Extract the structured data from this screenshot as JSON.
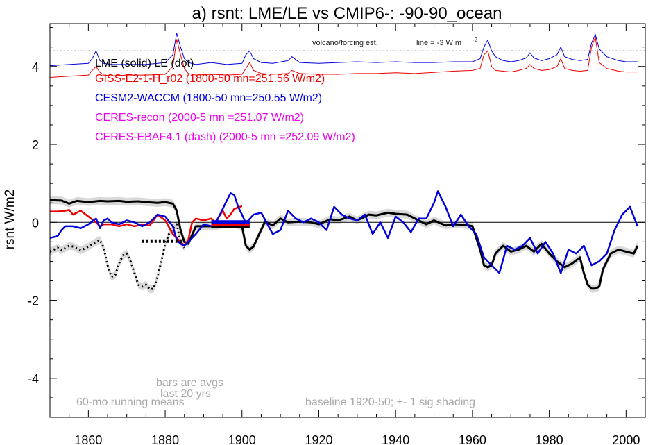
{
  "chart_data": {
    "type": "line",
    "title": "a) rsnt: LME/LE vs CMIP6-: -90-90_ocean",
    "ylabel": "rsnt W/m2",
    "xlabel": "",
    "xlim": [
      1850,
      2005
    ],
    "ylim": [
      -5,
      5.1
    ],
    "x_ticks": [
      "1860",
      "1880",
      "1900",
      "1920",
      "1940",
      "1960",
      "1980",
      "2000"
    ],
    "y_ticks": [
      "4",
      "2",
      "0",
      "-2",
      "-4"
    ],
    "grid": false,
    "zero_line": 0,
    "legend_placement": "top-left",
    "legend": [
      {
        "text": "LME (solid)   LE (dot)",
        "color": "#000000"
      },
      {
        "text": "GISS-E2-1-H_r02 (1800-50 mn=251.56 W/m2)",
        "color": "#ee0000"
      },
      {
        "text": "CESM2-WACCM (1800-50 mn=250.55 W/m2)",
        "color": "#0000dd"
      },
      {
        "text": "CERES-recon (2000-5 mn =251.07 W/m2)",
        "color": "#ee00ee"
      },
      {
        "text": "CERES-EBAF4.1 (dash) (2000-5 mn =252.09 W/m2)",
        "color": "#ee00ee"
      }
    ],
    "annotations": {
      "volcano": "volcano/forcing est.",
      "line_scale": "line = -3 W m",
      "line_scale_sup": "-2",
      "bars_1": "bars are avgs",
      "bars_2": "last 20 yrs",
      "running": "60-mo running means",
      "baseline": "baseline 1920-50; +- 1 sig shading"
    },
    "series": [
      {
        "name": "LME (solid)",
        "color": "#000000",
        "width": 3,
        "shade": true,
        "x": [
          1850,
          1853,
          1855,
          1857,
          1860,
          1863,
          1865,
          1868,
          1870,
          1873,
          1875,
          1878,
          1880,
          1882,
          1883,
          1884,
          1885,
          1886,
          1888,
          1890,
          1893,
          1895,
          1898,
          1900,
          1901,
          1902,
          1903,
          1904,
          1906,
          1908,
          1910,
          1912,
          1915,
          1918,
          1920,
          1923,
          1925,
          1928,
          1930,
          1933,
          1935,
          1938,
          1940,
          1943,
          1945,
          1948,
          1950,
          1953,
          1955,
          1958,
          1960,
          1962,
          1963,
          1964,
          1965,
          1966,
          1968,
          1970,
          1972,
          1974,
          1976,
          1978,
          1980,
          1982,
          1984,
          1986,
          1988,
          1989,
          1990,
          1991,
          1992,
          1993,
          1994,
          1996,
          1998,
          2000,
          2002,
          2003
        ],
        "values": [
          0.57,
          0.56,
          0.48,
          0.55,
          0.52,
          0.55,
          0.54,
          0.55,
          0.53,
          0.54,
          0.52,
          0.5,
          0.52,
          0.48,
          0.3,
          -0.2,
          -0.5,
          -0.55,
          -0.1,
          -0.1,
          -0.1,
          -0.05,
          -0.05,
          -0.1,
          -0.6,
          -0.7,
          -0.62,
          -0.4,
          0.02,
          -0.08,
          0.1,
          0.0,
          0.02,
          0.0,
          -0.05,
          0.08,
          0.05,
          0.15,
          0.05,
          0.2,
          0.18,
          0.25,
          0.22,
          0.2,
          0.1,
          -0.05,
          0.05,
          -0.08,
          -0.05,
          -0.06,
          -0.1,
          -0.7,
          -1.1,
          -1.15,
          -1.1,
          -0.8,
          -0.6,
          -0.75,
          -0.7,
          -0.6,
          -0.75,
          -0.55,
          -0.8,
          -1.0,
          -1.15,
          -1.05,
          -0.9,
          -1.3,
          -1.6,
          -1.7,
          -1.7,
          -1.65,
          -1.2,
          -0.8,
          -0.7,
          -0.75,
          -0.8,
          -0.6
        ]
      },
      {
        "name": "LE (dot)",
        "color": "#000000",
        "width": 3,
        "dash": "2,4",
        "shade": true,
        "x": [
          1850,
          1852,
          1853,
          1855,
          1856,
          1858,
          1860,
          1862,
          1863,
          1864,
          1865,
          1866,
          1867,
          1868,
          1869,
          1870,
          1871,
          1872,
          1873,
          1874,
          1875,
          1876,
          1877,
          1878,
          1879,
          1880,
          1881,
          1882,
          1883,
          1884,
          1885
        ],
        "values": [
          -0.75,
          -0.65,
          -0.72,
          -0.6,
          -0.62,
          -0.72,
          -0.62,
          -0.5,
          -0.45,
          -0.65,
          -1.1,
          -1.4,
          -1.35,
          -1.05,
          -0.85,
          -0.8,
          -1.0,
          -1.3,
          -1.6,
          -1.65,
          -1.6,
          -1.72,
          -1.7,
          -1.4,
          -1.0,
          -0.55,
          -0.3,
          -0.15,
          -0.05,
          -0.5,
          -0.65
        ]
      },
      {
        "name": "GISS-E2-1-H_r02",
        "color": "#ee0000",
        "width": 2.5,
        "x": [
          1850,
          1852,
          1854,
          1855,
          1856,
          1858,
          1860,
          1862,
          1863,
          1864,
          1866,
          1868,
          1870,
          1872,
          1874,
          1876,
          1878,
          1880,
          1882,
          1884,
          1885,
          1886,
          1887,
          1888,
          1890,
          1892,
          1893,
          1894,
          1895,
          1896,
          1897,
          1898,
          1899,
          1900
        ],
        "values": [
          0.28,
          0.28,
          0.3,
          0.32,
          0.2,
          0.3,
          0.15,
          0.0,
          -0.1,
          -0.05,
          -0.05,
          -0.1,
          -0.05,
          -0.1,
          -0.05,
          -0.08,
          0.2,
          0.05,
          -0.3,
          -0.5,
          -0.6,
          -0.45,
          0.0,
          0.1,
          0.05,
          0.1,
          0.0,
          0.15,
          0.3,
          0.1,
          0.2,
          0.35,
          0.38,
          0.42
        ]
      },
      {
        "name": "CESM2-WACCM",
        "color": "#0000dd",
        "width": 2.5,
        "x": [
          1850,
          1852,
          1853,
          1854,
          1856,
          1858,
          1860,
          1862,
          1863,
          1864,
          1865,
          1866,
          1868,
          1870,
          1872,
          1874,
          1876,
          1878,
          1880,
          1882,
          1883,
          1884,
          1885,
          1886,
          1888,
          1890,
          1892,
          1893,
          1895,
          1896,
          1897,
          1898,
          1899,
          1900,
          1901,
          1903,
          1905,
          1908,
          1910,
          1912,
          1914,
          1916,
          1918,
          1920,
          1922,
          1924,
          1926,
          1928,
          1930,
          1932,
          1934,
          1936,
          1938,
          1940,
          1942,
          1944,
          1946,
          1948,
          1950,
          1951,
          1953,
          1955,
          1957,
          1959,
          1961,
          1963,
          1965,
          1967,
          1969,
          1971,
          1973,
          1975,
          1977,
          1979,
          1981,
          1983,
          1985,
          1987,
          1989,
          1991,
          1993,
          1995,
          1997,
          1999,
          2001,
          2003
        ],
        "values": [
          -0.4,
          -0.35,
          -0.2,
          -0.1,
          -0.1,
          -0.15,
          -0.05,
          0.1,
          -0.15,
          0.05,
          0.1,
          0.0,
          -0.05,
          0.05,
          0.0,
          -0.1,
          0.0,
          0.2,
          0.15,
          -0.1,
          -0.45,
          -0.55,
          -0.6,
          -0.5,
          -0.3,
          -0.05,
          -0.1,
          -0.05,
          0.35,
          0.55,
          0.75,
          0.7,
          0.4,
          0.2,
          -0.02,
          0.2,
          0.25,
          -0.3,
          -0.2,
          0.3,
          0.1,
          0.0,
          0.1,
          0.0,
          -0.2,
          0.4,
          0.2,
          0.1,
          0.05,
          0.2,
          -0.3,
          0.0,
          -0.4,
          0.15,
          0.0,
          -0.25,
          0.1,
          0.1,
          0.5,
          0.8,
          0.4,
          -0.1,
          0.2,
          -0.1,
          -0.3,
          -0.9,
          -1.1,
          -1.3,
          -0.6,
          -0.7,
          -0.6,
          -0.4,
          -0.8,
          -0.5,
          -0.8,
          -1.3,
          -0.7,
          -0.8,
          -0.6,
          -1.1,
          -1.0,
          -0.8,
          -0.2,
          0.2,
          0.4,
          -0.1
        ]
      }
    ],
    "volcano_series": {
      "name": "volcano/forcing est.",
      "color": "#0000dd",
      "x": [
        1850,
        1855,
        1860,
        1861,
        1862,
        1863,
        1864,
        1866,
        1870,
        1875,
        1880,
        1882,
        1883,
        1884,
        1885,
        1886,
        1888,
        1892,
        1896,
        1900,
        1901,
        1902,
        1903,
        1905,
        1908,
        1912,
        1913,
        1915,
        1920,
        1925,
        1930,
        1935,
        1940,
        1945,
        1950,
        1955,
        1960,
        1962,
        1963,
        1964,
        1965,
        1966,
        1968,
        1970,
        1972,
        1974,
        1975,
        1976,
        1978,
        1980,
        1982,
        1983,
        1984,
        1986,
        1988,
        1990,
        1991,
        1992,
        1993,
        1995,
        1998,
        2000,
        2003
      ],
      "values": [
        4.02,
        4.05,
        4.08,
        4.2,
        4.4,
        4.15,
        4.08,
        4.05,
        4.05,
        4.05,
        4.1,
        4.3,
        4.85,
        4.5,
        4.2,
        4.1,
        4.05,
        4.1,
        4.05,
        4.08,
        4.3,
        4.4,
        4.2,
        4.1,
        4.08,
        4.15,
        4.25,
        4.1,
        4.08,
        4.1,
        4.12,
        4.1,
        4.12,
        4.1,
        4.1,
        4.12,
        4.12,
        4.2,
        4.5,
        4.68,
        4.4,
        4.25,
        4.15,
        4.12,
        4.15,
        4.22,
        4.35,
        4.22,
        4.15,
        4.2,
        4.3,
        4.5,
        4.25,
        4.18,
        4.15,
        4.18,
        4.6,
        4.82,
        4.45,
        4.25,
        4.15,
        4.12,
        4.12
      ]
    },
    "forcing_series": {
      "name": "GISS forcing",
      "color": "#ee0000",
      "x": [
        1850,
        1855,
        1860,
        1861,
        1862,
        1863,
        1864,
        1866,
        1870,
        1875,
        1880,
        1882,
        1883,
        1884,
        1885,
        1886,
        1888,
        1892,
        1896,
        1900,
        1901,
        1902,
        1903,
        1905,
        1908,
        1912,
        1913,
        1915,
        1920,
        1925,
        1930,
        1935,
        1940,
        1945,
        1950,
        1955,
        1960,
        1962,
        1963,
        1964,
        1965,
        1966,
        1968,
        1970,
        1972,
        1974,
        1975,
        1976,
        1978,
        1980,
        1982,
        1983,
        1984,
        1986,
        1988,
        1990,
        1991,
        1992,
        1993,
        1995,
        1998,
        2000,
        2003
      ],
      "values": [
        3.72,
        3.75,
        3.78,
        3.9,
        4.0,
        3.85,
        3.78,
        3.76,
        3.78,
        3.78,
        3.8,
        4.0,
        4.7,
        4.3,
        3.95,
        3.82,
        3.78,
        3.8,
        3.78,
        3.8,
        3.95,
        4.1,
        3.9,
        3.82,
        3.8,
        3.82,
        3.9,
        3.82,
        3.8,
        3.8,
        3.82,
        3.82,
        3.84,
        3.82,
        3.85,
        3.88,
        3.9,
        3.95,
        4.3,
        4.4,
        4.0,
        3.9,
        3.88,
        3.86,
        3.9,
        3.95,
        4.05,
        3.95,
        3.9,
        3.92,
        4.0,
        4.2,
        3.95,
        3.9,
        3.88,
        3.9,
        4.5,
        4.75,
        4.1,
        3.95,
        3.88,
        3.86,
        3.86
      ]
    },
    "bars": [
      {
        "name": "LE avg",
        "color": "#000000",
        "x0": 1874,
        "x1": 1885,
        "value": -0.48,
        "dash": "3,3"
      },
      {
        "name": "LME avg",
        "color": "#000000",
        "x0": 1892,
        "x1": 1902,
        "value": -0.1
      },
      {
        "name": "GISS avg",
        "color": "#ee0000",
        "x0": 1892,
        "x1": 1902,
        "value": -0.05
      },
      {
        "name": "CESM2 avg",
        "color": "#0000dd",
        "x0": 1892,
        "x1": 1902,
        "value": 0.01
      }
    ],
    "volcano_line_value": 4.4
  }
}
